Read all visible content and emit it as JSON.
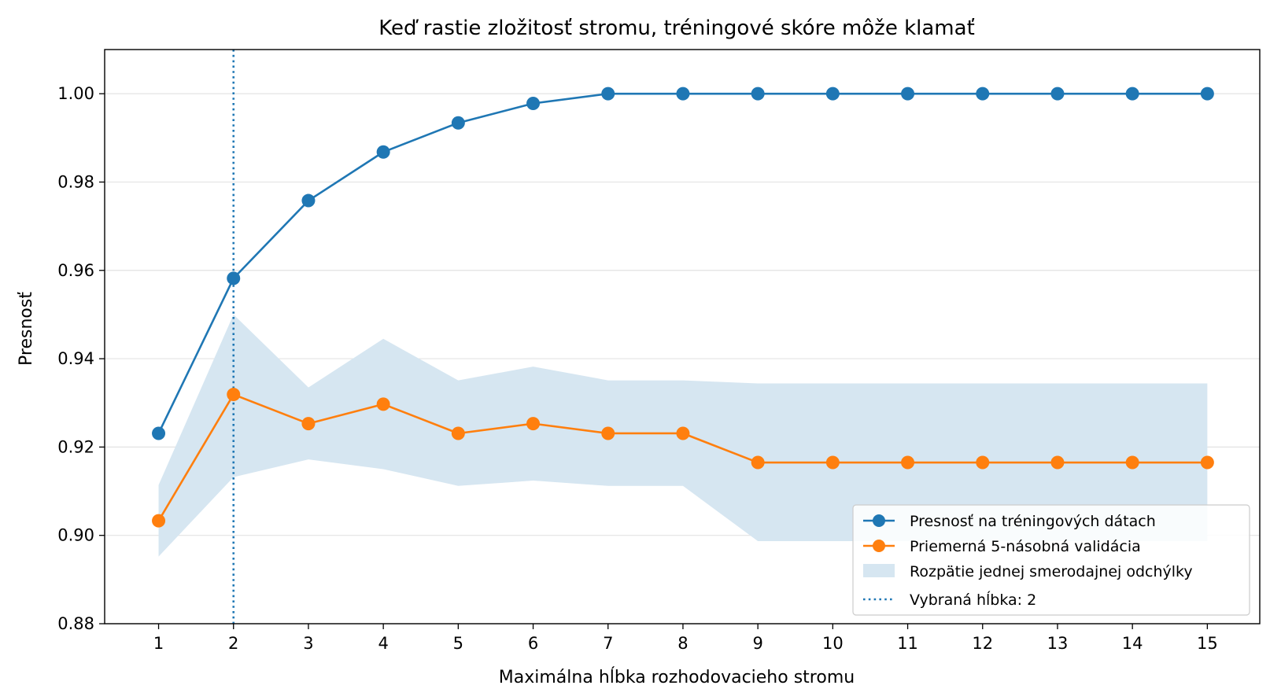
{
  "chart_data": {
    "type": "line",
    "title": "Keď rastie zložitosť stromu, tréningové skóre môže klamať",
    "xlabel": "Maximálna hĺbka rozhodovacieho stromu",
    "ylabel": "Presnosť",
    "x": [
      1,
      2,
      3,
      4,
      5,
      6,
      7,
      8,
      9,
      10,
      11,
      12,
      13,
      14,
      15
    ],
    "xlim": [
      0.28,
      15.7
    ],
    "ylim": [
      0.88,
      1.01
    ],
    "yticks": [
      0.88,
      0.9,
      0.92,
      0.94,
      0.96,
      0.98,
      1.0
    ],
    "ytick_labels": [
      "0.88",
      "0.90",
      "0.92",
      "0.94",
      "0.96",
      "0.98",
      "1.00"
    ],
    "xtick_labels": [
      "1",
      "2",
      "3",
      "4",
      "5",
      "6",
      "7",
      "8",
      "9",
      "10",
      "11",
      "12",
      "13",
      "14",
      "15"
    ],
    "grid": "horizontal",
    "series": [
      {
        "name": "Presnosť na tréningových dátach",
        "color": "#1f77b4",
        "marker": "circle",
        "values": [
          0.9231,
          0.9582,
          0.9758,
          0.9868,
          0.9934,
          0.9978,
          1.0,
          1.0,
          1.0,
          1.0,
          1.0,
          1.0,
          1.0,
          1.0,
          1.0
        ]
      },
      {
        "name": "Priemerná 5-násobná validácia",
        "color": "#ff7f0e",
        "marker": "circle",
        "values": [
          0.9033,
          0.9319,
          0.9253,
          0.9297,
          0.9231,
          0.9253,
          0.9231,
          0.9231,
          0.9165,
          0.9165,
          0.9165,
          0.9165,
          0.9165,
          0.9165,
          0.9165
        ]
      }
    ],
    "band": {
      "name": "Rozpätie jednej smerodajnej odchýlky",
      "color": "#d6e6f1",
      "lower": [
        0.8952,
        0.9132,
        0.9172,
        0.915,
        0.9112,
        0.9124,
        0.9112,
        0.9112,
        0.8987,
        0.8987,
        0.8987,
        0.8987,
        0.8987,
        0.8987,
        0.8987
      ],
      "upper": [
        0.9114,
        0.95,
        0.9335,
        0.9445,
        0.9351,
        0.9382,
        0.9351,
        0.9351,
        0.9344,
        0.9344,
        0.9344,
        0.9344,
        0.9344,
        0.9344,
        0.9344
      ]
    },
    "vline": {
      "name": "Vybraná hĺbka: 2",
      "x": 2,
      "color": "#1f77b4",
      "style": "dotted"
    },
    "legend_position": "lower-right"
  }
}
